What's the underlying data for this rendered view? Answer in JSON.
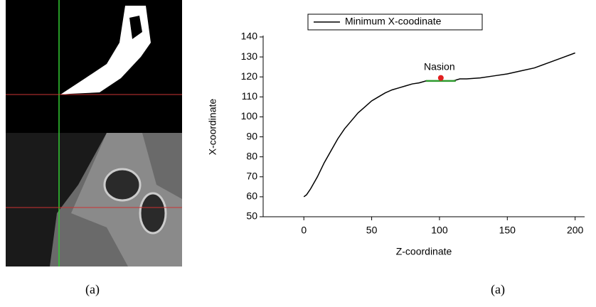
{
  "chart_data": {
    "type": "line",
    "xlabel": "Z-coordinate",
    "ylabel": "X-coordinate",
    "x": [
      0,
      2,
      5,
      10,
      15,
      20,
      25,
      30,
      35,
      40,
      45,
      50,
      55,
      60,
      65,
      70,
      75,
      80,
      85,
      90,
      100,
      110,
      115,
      120,
      130,
      140,
      150,
      160,
      170,
      180,
      190,
      200
    ],
    "series": [
      {
        "name": "Minimum X-coodinate",
        "color": "#000000",
        "values": [
          60,
          61,
          64,
          70,
          77,
          83,
          89,
          94,
          98,
          102,
          105,
          108,
          110,
          112,
          113.5,
          114.5,
          115.5,
          116.5,
          117,
          118,
          118,
          118,
          119,
          119,
          119.5,
          120.5,
          121.5,
          123,
          124.5,
          127,
          129.5,
          132
        ]
      }
    ],
    "highlight": {
      "x": [
        90,
        112
      ],
      "values": [
        118,
        118
      ],
      "color": "#2e9a2e"
    },
    "annotation": {
      "text": "Nasion",
      "x": 101,
      "y": 119.5,
      "color": "#e02020"
    },
    "xlim": [
      -30,
      207
    ],
    "ylim": [
      50,
      140
    ],
    "xticks": [
      0,
      50,
      100,
      150,
      200
    ],
    "yticks": [
      50,
      60,
      70,
      80,
      90,
      100,
      110,
      120,
      130,
      140
    ],
    "legend": "top"
  },
  "captions": [
    "(a)",
    "(a)"
  ]
}
